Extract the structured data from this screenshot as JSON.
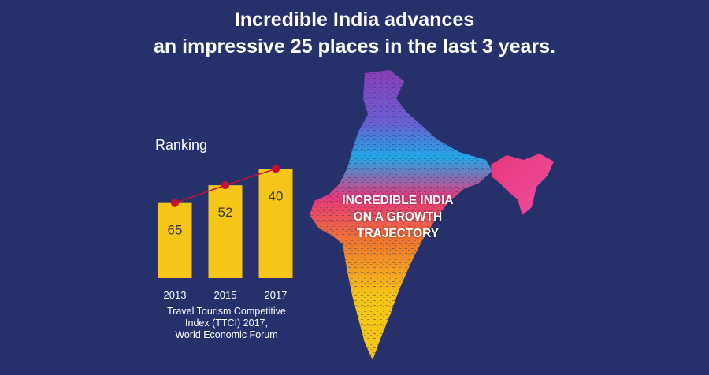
{
  "headline": {
    "line1": "Incredible India advances",
    "line2": "an impressive 25 places in the last 3 years."
  },
  "chart_data": {
    "type": "bar",
    "ylabel": "Ranking",
    "categories": [
      "2013",
      "2015",
      "2017"
    ],
    "values": [
      65,
      52,
      40
    ],
    "trend_line": true,
    "bar_color": "#f5c518",
    "line_color": "#c8102e"
  },
  "source": {
    "lines": [
      "Travel Tourism Competitive",
      "Index (TTCI) 2017,",
      "World Economic Forum"
    ]
  },
  "map": {
    "caption_lines": [
      "INCREDIBLE INDIA",
      "ON A GROWTH",
      "TRAJECTORY"
    ],
    "colors": [
      "#8a3fb8",
      "#22a7e6",
      "#e6387a",
      "#f07a2c",
      "#f5c518"
    ]
  },
  "theme": {
    "background": "#26306a",
    "text": "#ffffff"
  }
}
